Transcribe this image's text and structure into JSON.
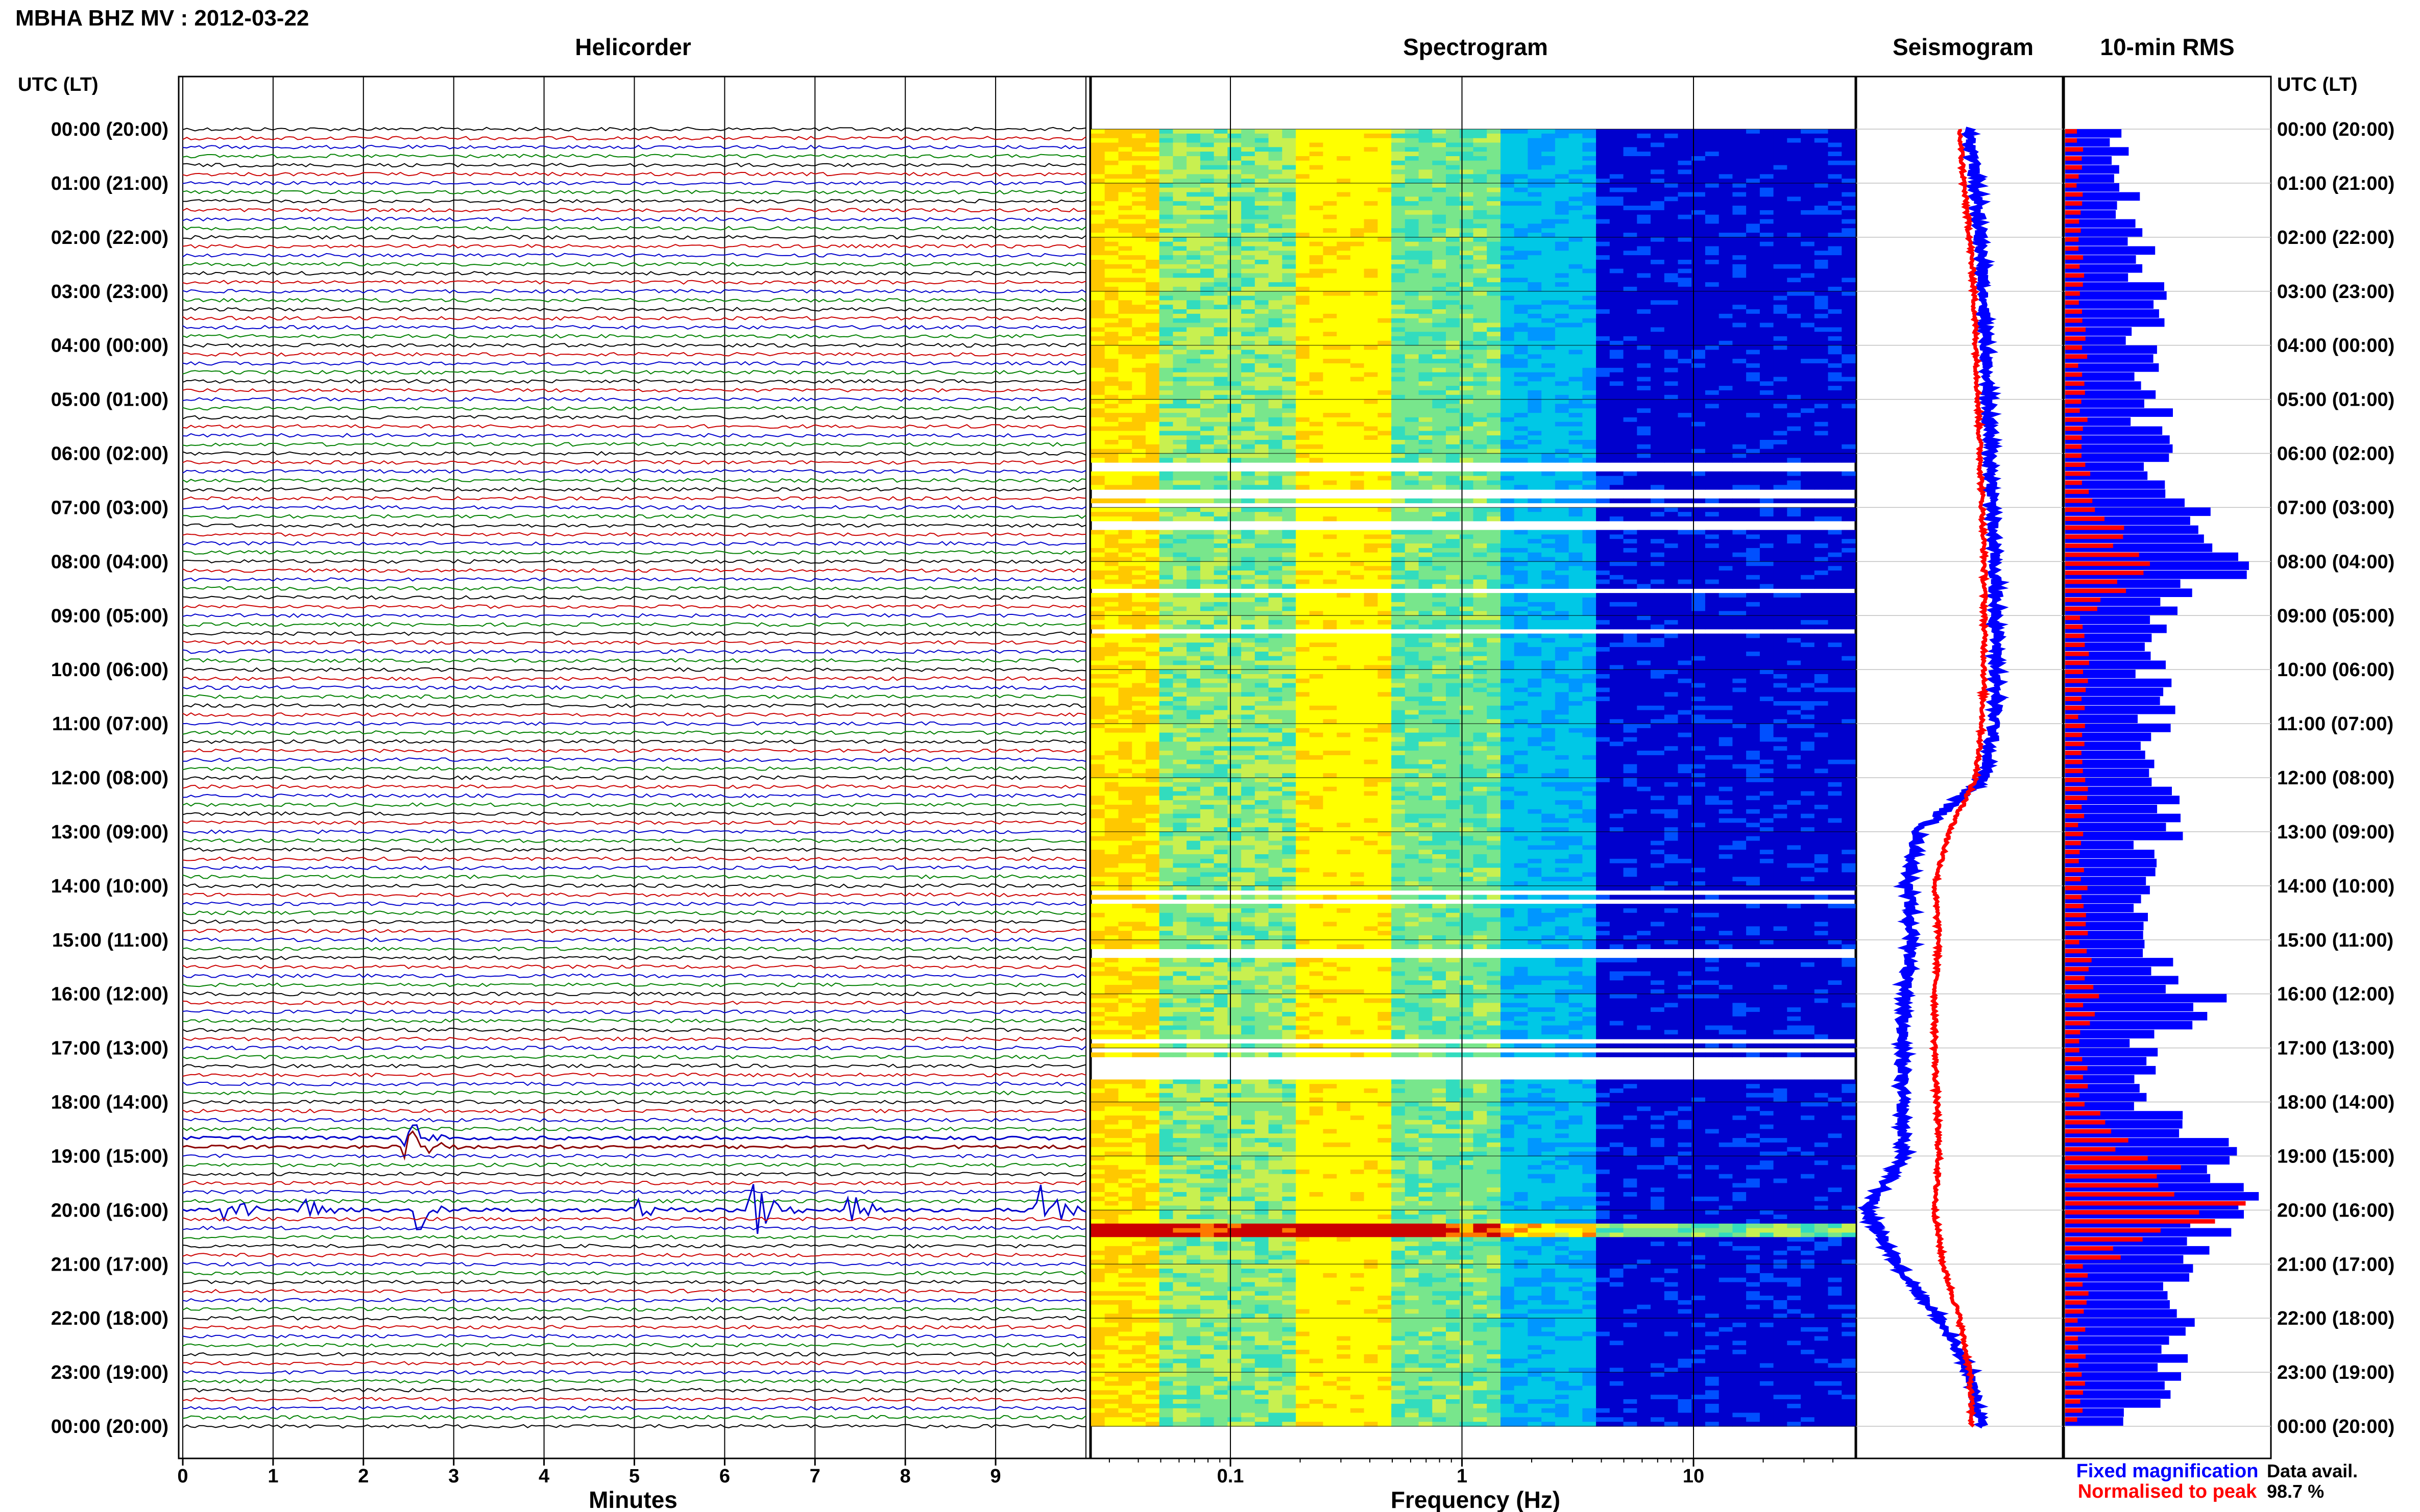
{
  "header": {
    "title": "MBHA BHZ MV : 2012-03-22"
  },
  "panels": {
    "helicorder": "Helicorder",
    "spectrogram": "Spectrogram",
    "seismogram": "Seismogram",
    "rms": "10-min RMS"
  },
  "time_axis": {
    "label_left": "UTC (LT)",
    "label_right": "UTC (LT)",
    "ticks": [
      "00:00 (20:00)",
      "01:00 (21:00)",
      "02:00 (22:00)",
      "03:00 (23:00)",
      "04:00 (00:00)",
      "05:00 (01:00)",
      "06:00 (02:00)",
      "07:00 (03:00)",
      "08:00 (04:00)",
      "09:00 (05:00)",
      "10:00 (06:00)",
      "11:00 (07:00)",
      "12:00 (08:00)",
      "13:00 (09:00)",
      "14:00 (10:00)",
      "15:00 (11:00)",
      "16:00 (12:00)",
      "17:00 (13:00)",
      "18:00 (14:00)",
      "19:00 (15:00)",
      "20:00 (16:00)",
      "21:00 (17:00)",
      "22:00 (18:00)",
      "23:00 (19:00)",
      "00:00 (20:00)"
    ]
  },
  "helicorder_axis": {
    "xlabel": "Minutes",
    "ticks": [
      "0",
      "1",
      "2",
      "3",
      "4",
      "5",
      "6",
      "7",
      "8",
      "9"
    ]
  },
  "spectrogram_axis": {
    "xlabel": "Frequency (Hz)",
    "ticks": [
      "0.1",
      "1",
      "10"
    ]
  },
  "legend": {
    "fixed": "Fixed magnification",
    "normalised": "Normalised to peak",
    "fixed_color": "#0000ff",
    "normalised_color": "#ff0000"
  },
  "data_avail": {
    "label": "Data avail.",
    "value": "98.7 %"
  },
  "colors": {
    "trace_cycle": [
      "#000000",
      "#cc0000",
      "#0000cc",
      "#008000"
    ],
    "event_trace": "#8b0000",
    "fixed": "#0000ff",
    "normalised": "#ff0000",
    "spectrogram_low": "#00008b",
    "spectrogram_high": "#ffff00"
  },
  "chart_data": [
    {
      "type": "line",
      "title": "Helicorder",
      "xlabel": "Minutes",
      "xlim": [
        0,
        10
      ],
      "ylabel": "UTC (LT)",
      "lines_per_hour": 6,
      "hours": 24,
      "events": [
        {
          "time": "18:45",
          "minute": 2.5,
          "strength": 1.0
        },
        {
          "time": "20:00",
          "minute": 0.5,
          "strength": 0.7
        },
        {
          "time": "20:00",
          "minute": 1.3,
          "strength": 0.8
        },
        {
          "time": "20:00",
          "minute": 2.6,
          "strength": 1.2
        },
        {
          "time": "20:00",
          "minute": 5.0,
          "strength": 0.7
        },
        {
          "time": "20:00",
          "minute": 6.3,
          "strength": 1.6
        },
        {
          "time": "20:00",
          "minute": 7.4,
          "strength": 0.8
        },
        {
          "time": "20:00",
          "minute": 9.5,
          "strength": 1.3
        }
      ]
    },
    {
      "type": "heatmap",
      "title": "Spectrogram",
      "xlabel": "Frequency (Hz)",
      "xscale": "log",
      "xlim": [
        0.025,
        50
      ],
      "ylim_hours": [
        0,
        24
      ],
      "gaps_hours": [
        6.2,
        6.7,
        6.9,
        7.3,
        8.5,
        9.25,
        14.1,
        14.25,
        15.2,
        16.85,
        17.0,
        17.15,
        17.3,
        17.45
      ],
      "burst_hours": [
        20.3
      ]
    },
    {
      "type": "line",
      "title": "Seismogram",
      "series": [
        {
          "name": "Fixed magnification",
          "relative_level": [
            0.55,
            0.58,
            0.6,
            0.62,
            0.63,
            0.64,
            0.65,
            0.66,
            0.67,
            0.68,
            0.68,
            0.67,
            0.62,
            0.3,
            0.25,
            0.27,
            0.24,
            0.22,
            0.22,
            0.23,
            0.05,
            0.2,
            0.4,
            0.55,
            0.6
          ]
        },
        {
          "name": "Normalised to peak",
          "relative_level": [
            0.5,
            0.52,
            0.55,
            0.57,
            0.58,
            0.59,
            0.6,
            0.61,
            0.62,
            0.62,
            0.62,
            0.61,
            0.58,
            0.45,
            0.38,
            0.4,
            0.38,
            0.38,
            0.39,
            0.4,
            0.38,
            0.42,
            0.5,
            0.55,
            0.56
          ]
        }
      ]
    },
    {
      "type": "bar",
      "title": "10-min RMS",
      "orientation": "horizontal",
      "series": [
        {
          "name": "Fixed magnification",
          "relative_level": [
            0.3,
            0.35,
            0.4,
            0.55,
            0.45,
            0.5,
            0.55,
            0.7,
            1.0,
            0.5,
            0.55,
            0.5,
            0.52,
            0.55,
            0.4,
            0.45,
            0.8,
            0.45,
            0.5,
            1.0,
            1.0,
            0.65,
            0.6,
            0.6,
            0.4
          ]
        },
        {
          "name": "Normalised to peak",
          "relative_level": [
            0.08,
            0.08,
            0.08,
            0.1,
            0.1,
            0.1,
            0.1,
            0.15,
            0.5,
            0.1,
            0.12,
            0.1,
            0.1,
            0.1,
            0.1,
            0.1,
            0.15,
            0.1,
            0.1,
            0.45,
            0.9,
            0.12,
            0.1,
            0.1,
            0.08
          ]
        }
      ]
    }
  ]
}
